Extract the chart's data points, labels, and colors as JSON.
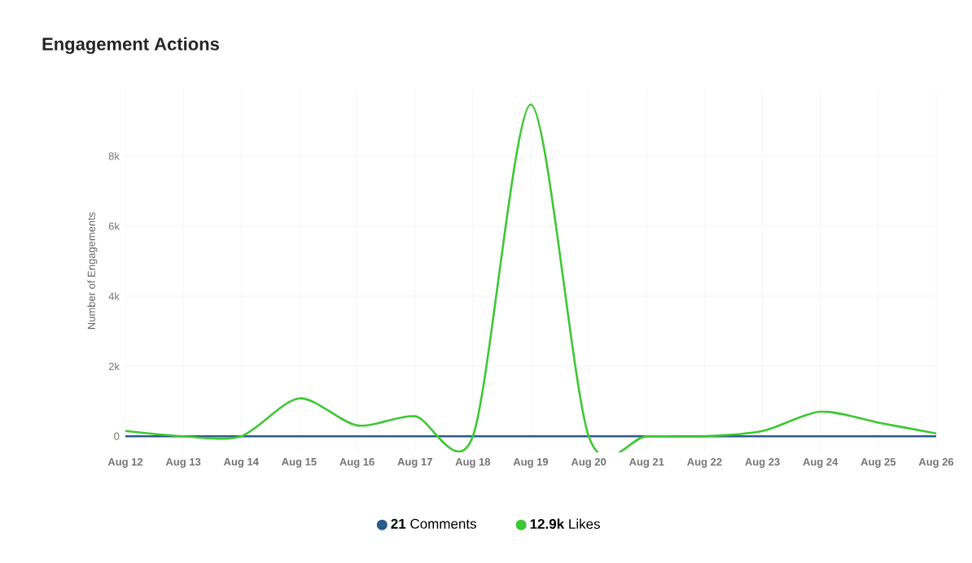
{
  "chart_data": {
    "type": "line",
    "title": "Engagement Actions",
    "ylabel": "Number of Engagements",
    "categories": [
      "Aug 12",
      "Aug 13",
      "Aug 14",
      "Aug 15",
      "Aug 16",
      "Aug 17",
      "Aug 18",
      "Aug 19",
      "Aug 20",
      "Aug 21",
      "Aug 22",
      "Aug 23",
      "Aug 24",
      "Aug 25",
      "Aug 26"
    ],
    "series": [
      {
        "name": "**21** Comments",
        "color": "#2b5b8a",
        "values": [
          0,
          0,
          0,
          0,
          0,
          0,
          0,
          0,
          0,
          0,
          0,
          0,
          0,
          0,
          0
        ]
      },
      {
        "name": "**12.9k** Likes",
        "color": "#3cc832",
        "values": [
          150,
          0,
          0,
          1080,
          310,
          570,
          0,
          9470,
          0,
          0,
          0,
          150,
          700,
          390,
          80
        ]
      }
    ],
    "ylim": [
      -460,
      9900
    ],
    "yticks": [
      0,
      {
        "value": 2000,
        "label": "2k"
      },
      {
        "value": 4000,
        "label": "4k"
      },
      {
        "value": 6000,
        "label": "6k"
      },
      {
        "value": 8000,
        "label": "8k"
      }
    ],
    "grid": true,
    "legend": "bottom"
  }
}
